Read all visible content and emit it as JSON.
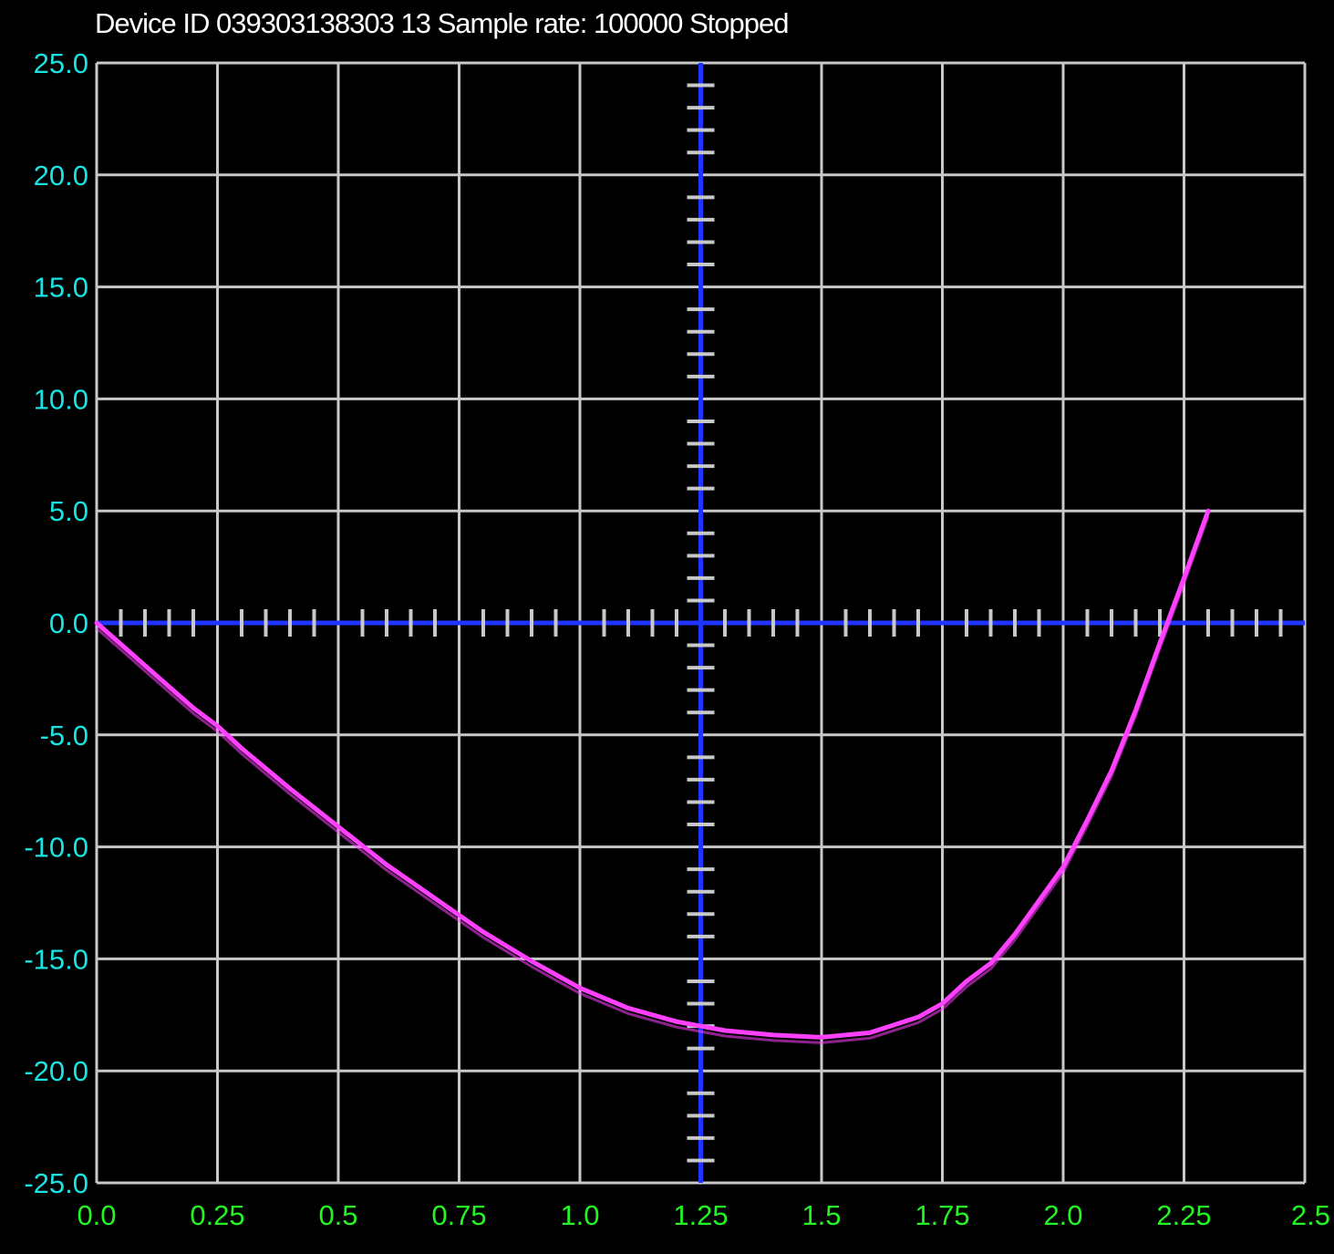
{
  "status_bar": {
    "title": "Device ID 039303138303 13 Sample rate: 100000 Stopped"
  },
  "colors": {
    "background": "#000000",
    "grid": "#c8c8c8",
    "zero_axes": "#1f35ff",
    "trace": "#ff40ff",
    "y_tick_labels": "#19e3e3",
    "x_tick_labels": "#22f522"
  },
  "chart_data": {
    "type": "line",
    "title": "",
    "xlabel": "",
    "ylabel": "",
    "xlim": [
      0.0,
      2.5
    ],
    "ylim": [
      -25.0,
      25.0
    ],
    "grid": true,
    "x_ticks": [
      "0.0",
      "0.25",
      "0.5",
      "0.75",
      "1.0",
      "1.25",
      "1.5",
      "1.75",
      "2.0",
      "2.25",
      "2.5"
    ],
    "y_ticks": [
      "25.0",
      "20.0",
      "15.0",
      "10.0",
      "5.0",
      "0.0",
      "-5.0",
      "-10.0",
      "-15.0",
      "-20.0",
      "-25.0"
    ],
    "series": [
      {
        "x": [
          0.0,
          0.1,
          0.2,
          0.25,
          0.3,
          0.4,
          0.5,
          0.6,
          0.7,
          0.8,
          0.9,
          1.0,
          1.1,
          1.2,
          1.25,
          1.3,
          1.4,
          1.5,
          1.6,
          1.7,
          1.75,
          1.8,
          1.85,
          1.9,
          2.0,
          2.05,
          2.1,
          2.15,
          2.2,
          2.25,
          2.3
        ],
        "y": [
          0.0,
          -1.9,
          -3.8,
          -4.6,
          -5.6,
          -7.4,
          -9.1,
          -10.8,
          -12.3,
          -13.8,
          -15.1,
          -16.3,
          -17.2,
          -17.8,
          -18.0,
          -18.2,
          -18.4,
          -18.5,
          -18.3,
          -17.6,
          -17.0,
          -16.0,
          -15.2,
          -13.9,
          -10.9,
          -8.8,
          -6.6,
          -3.9,
          -0.9,
          2.0,
          5.0
        ]
      }
    ]
  }
}
